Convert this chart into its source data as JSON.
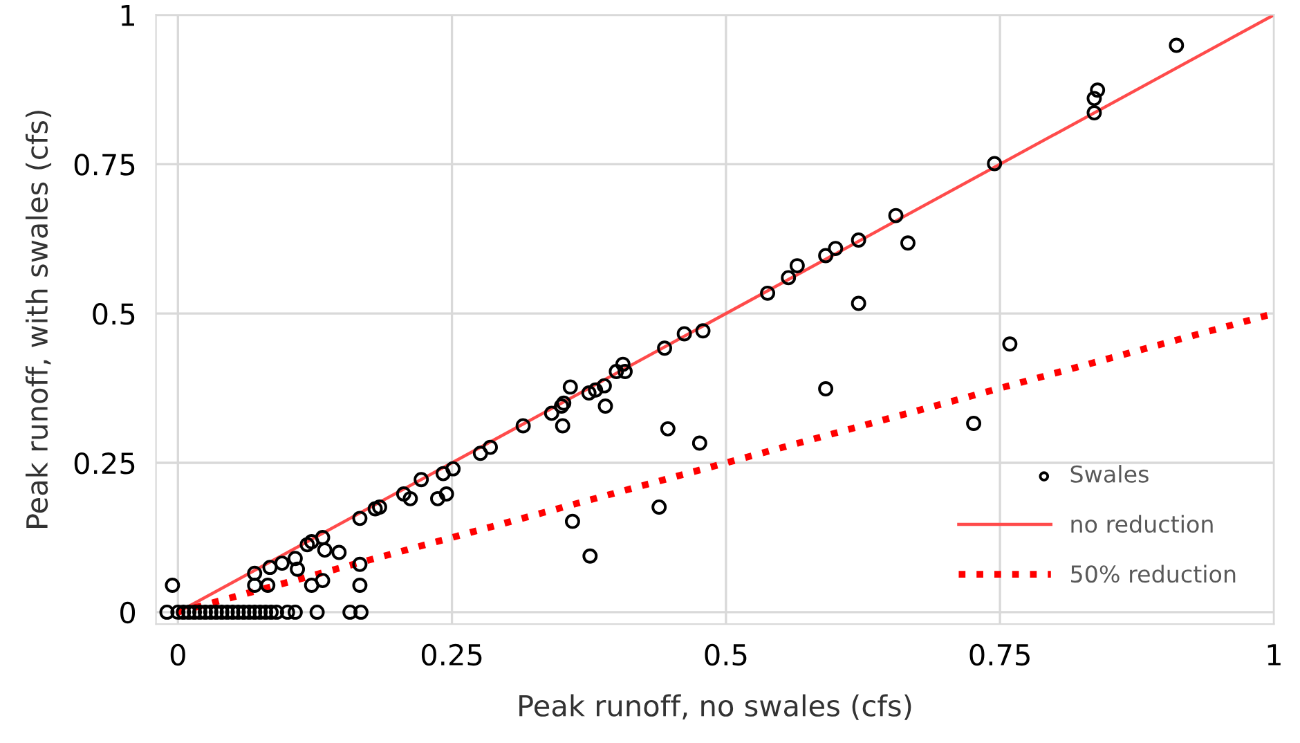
{
  "chart_data": {
    "type": "scatter",
    "xlabel": "Peak runoff, no swales (cfs)",
    "ylabel": "Peak runoff, with swales (cfs)",
    "xlim": [
      -0.02,
      1
    ],
    "ylim": [
      -0.02,
      1
    ],
    "xticks": [
      0,
      0.25,
      0.5,
      0.75,
      1
    ],
    "yticks": [
      0,
      0.25,
      0.5,
      0.75,
      1
    ],
    "grid": true,
    "legend": "bottom right",
    "marker": "circle",
    "series": [
      {
        "name": "Swales",
        "color": "#000000",
        "x": [
          -0.01,
          0,
          0.005,
          0.01,
          0.015,
          0.02,
          0.025,
          0.03,
          0.035,
          0.04,
          0.045,
          0.05,
          0.055,
          0.06,
          0.065,
          0.07,
          0.075,
          0.08,
          0.085,
          0.09,
          0.1,
          0.107,
          0.127,
          0.157,
          0.167,
          -0.005,
          0.07,
          0.07,
          0.082,
          0.084,
          0.095,
          0.107,
          0.109,
          0.118,
          0.122,
          0.132,
          0.134,
          0.147,
          0.122,
          0.132,
          0.166,
          0.18,
          0.166,
          0.166,
          0.184,
          0.206,
          0.212,
          0.222,
          0.237,
          0.245,
          0.242,
          0.251,
          0.276,
          0.285,
          0.315,
          0.341,
          0.35,
          0.352,
          0.351,
          0.358,
          0.36,
          0.376,
          0.375,
          0.381,
          0.389,
          0.39,
          0.4,
          0.406,
          0.408,
          0.444,
          0.462,
          0.479,
          0.447,
          0.476,
          0.439,
          0.538,
          0.557,
          0.565,
          0.591,
          0.6,
          0.621,
          0.621,
          0.655,
          0.666,
          0.591,
          0.726,
          0.759,
          0.745,
          0.836,
          0.836,
          0.839,
          0.911
        ],
        "values": [
          0,
          0,
          0,
          0,
          0,
          0,
          0,
          0,
          0,
          0,
          0,
          0,
          0,
          0,
          0,
          0,
          0,
          0,
          0,
          0,
          0,
          0,
          0,
          0,
          0,
          0.045,
          0.065,
          0.045,
          0.045,
          0.075,
          0.082,
          0.09,
          0.072,
          0.113,
          0.118,
          0.125,
          0.104,
          0.1,
          0.045,
          0.053,
          0.157,
          0.173,
          0.08,
          0.045,
          0.176,
          0.198,
          0.19,
          0.222,
          0.19,
          0.198,
          0.232,
          0.24,
          0.266,
          0.276,
          0.312,
          0.333,
          0.345,
          0.35,
          0.312,
          0.377,
          0.152,
          0.094,
          0.367,
          0.372,
          0.379,
          0.345,
          0.403,
          0.415,
          0.403,
          0.442,
          0.466,
          0.471,
          0.307,
          0.283,
          0.176,
          0.534,
          0.56,
          0.58,
          0.597,
          0.609,
          0.623,
          0.517,
          0.664,
          0.618,
          0.374,
          0.316,
          0.449,
          0.751,
          0.836,
          0.86,
          0.874,
          0.949
        ]
      },
      {
        "name": "no reduction",
        "type": "line",
        "color": "#ff4b4b",
        "line_style": "solid",
        "marker": "none",
        "x": [
          0,
          1
        ],
        "values": [
          0,
          1
        ]
      },
      {
        "name": "50% reduction",
        "type": "line",
        "color": "#ff0000",
        "line_style": "dotted",
        "marker": "none",
        "x": [
          0,
          1
        ],
        "values": [
          0,
          0.5
        ]
      }
    ]
  }
}
